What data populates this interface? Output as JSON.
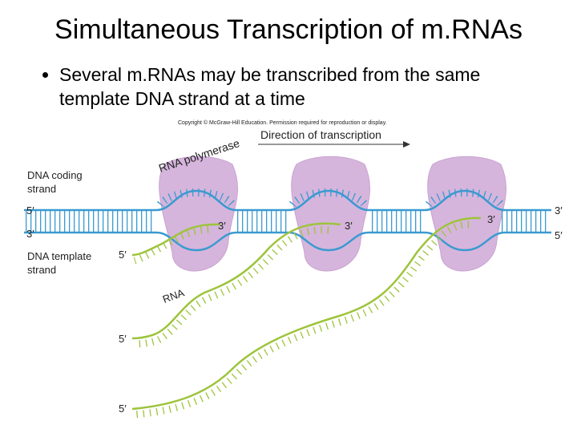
{
  "title": "Simultaneous Transcription of m.RNAs",
  "bullets": [
    "Several m.RNAs may be transcribed from the same template DNA strand at a time"
  ],
  "figure": {
    "copyright": "Copyright © McGraw-Hill Education. Permission required for reproduction or display.",
    "direction": "Direction of transcription",
    "polymerase": "RNA polymerase",
    "coding_strand": [
      "DNA coding",
      "strand"
    ],
    "template_strand": [
      "DNA template",
      "strand"
    ],
    "rna": "RNA",
    "left_ends": [
      "5′",
      "3′"
    ],
    "right_ends": [
      "3′",
      "5′"
    ],
    "rna_3_ends": [
      "3′",
      "3′",
      "3′"
    ],
    "rna_5_ends": [
      "5′",
      "5′",
      "5′"
    ]
  }
}
